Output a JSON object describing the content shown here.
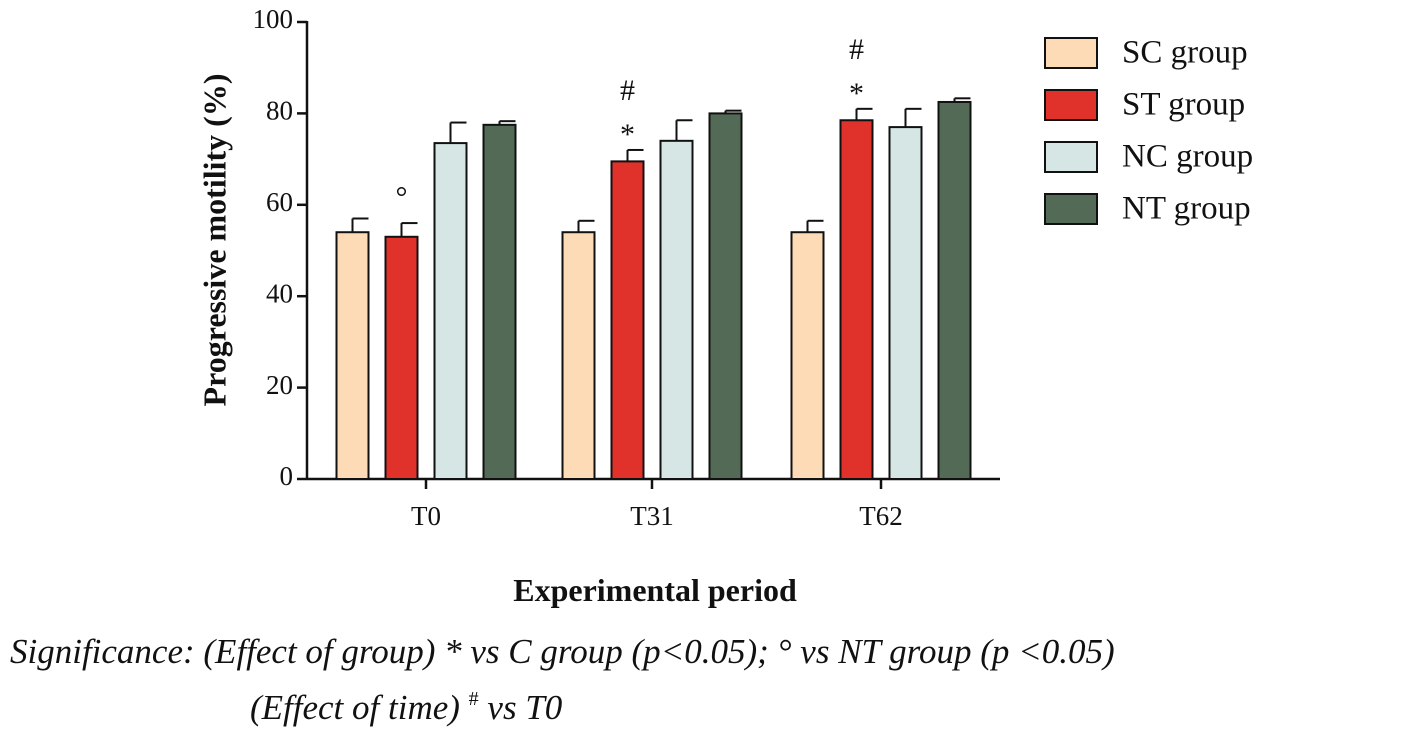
{
  "chart_data": {
    "type": "bar",
    "title": "",
    "xlabel": "Experimental period",
    "ylabel": "Progressive motility (%)",
    "ylim": [
      0,
      100
    ],
    "yticks": [
      "0",
      "20",
      "40",
      "60",
      "80",
      "100"
    ],
    "categories": [
      "T0",
      "T31",
      "T62"
    ],
    "series": [
      {
        "name": "SC group",
        "color": "#FDDBB6",
        "values": [
          54,
          54,
          54
        ],
        "errors": [
          3,
          2.5,
          2.5
        ]
      },
      {
        "name": "ST group",
        "color": "#E0312A",
        "values": [
          53,
          69.5,
          78.5
        ],
        "errors": [
          3,
          2.5,
          2.5
        ]
      },
      {
        "name": "NC group",
        "color": "#D6E6E5",
        "values": [
          73.5,
          74,
          77
        ],
        "errors": [
          4.5,
          4.5,
          4
        ]
      },
      {
        "name": "NT group",
        "color": "#536A56",
        "values": [
          77.5,
          80,
          82.5
        ],
        "errors": [
          0.8,
          0.6,
          0.8
        ]
      }
    ],
    "annotations": [
      {
        "category": 0,
        "series": 1,
        "marks": [
          "°"
        ]
      },
      {
        "category": 1,
        "series": 1,
        "marks": [
          "*",
          "#"
        ]
      },
      {
        "category": 2,
        "series": 1,
        "marks": [
          "*",
          "#"
        ]
      }
    ],
    "legend_position": "top-right"
  },
  "footnote": {
    "line1": "Significance: (Effect of group)  * vs C group (p<0.05); ° vs NT group (p <0.05)",
    "line2_prefix": "(Effect of time) ",
    "line2_sup": "#",
    "line2_suffix": " vs T0"
  }
}
